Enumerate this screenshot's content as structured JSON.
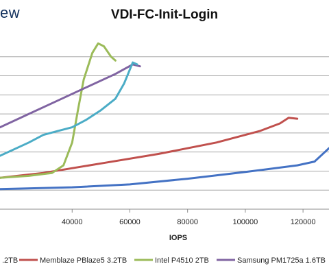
{
  "header": {
    "brand_fragment": "ew"
  },
  "colors": {
    "grid": "#a6a6a6",
    "axis": "#8c8c8c",
    "background": "#ffffff"
  },
  "chart_data": {
    "type": "line",
    "title": "VDI-FC-Init-Login",
    "xlabel": "IOPS",
    "ylabel": "",
    "xlim": [
      15000,
      129000
    ],
    "ylim": [
      0,
      9
    ],
    "grid": true,
    "legend_position": "bottom",
    "x_ticks": [
      40000,
      60000,
      80000,
      100000,
      120000
    ],
    "x_tick_labels": [
      "40000",
      "60000",
      "80000",
      "100000",
      "120000"
    ],
    "y_gridlines": [
      1,
      2,
      3,
      4,
      5,
      6,
      7,
      8
    ],
    "series": [
      {
        "name": ".2TB",
        "color": "#4472c4",
        "points": [
          [
            15000,
            1.05
          ],
          [
            40000,
            1.15
          ],
          [
            60000,
            1.3
          ],
          [
            80000,
            1.6
          ],
          [
            100000,
            1.95
          ],
          [
            118000,
            2.3
          ],
          [
            124000,
            2.5
          ],
          [
            129000,
            3.2
          ]
        ]
      },
      {
        "name": "Memblaze PBlaze5 3.2TB",
        "color": "#c0504d",
        "points": [
          [
            15000,
            1.65
          ],
          [
            30000,
            1.9
          ],
          [
            50000,
            2.4
          ],
          [
            70000,
            2.9
          ],
          [
            90000,
            3.5
          ],
          [
            105000,
            4.1
          ],
          [
            112000,
            4.5
          ],
          [
            115000,
            4.8
          ],
          [
            118000,
            4.75
          ]
        ]
      },
      {
        "name": "Intel P4510 2TB",
        "color": "#9bbb59",
        "points": [
          [
            15000,
            1.65
          ],
          [
            25000,
            1.75
          ],
          [
            33000,
            1.9
          ],
          [
            37000,
            2.3
          ],
          [
            40000,
            3.5
          ],
          [
            42000,
            5.2
          ],
          [
            44000,
            6.8
          ],
          [
            47000,
            8.2
          ],
          [
            49000,
            8.7
          ],
          [
            51000,
            8.55
          ],
          [
            53500,
            8.0
          ],
          [
            55000,
            7.8
          ]
        ]
      },
      {
        "name": "Samsung PM1725a 1.6TB",
        "color": "#8064a2",
        "points": [
          [
            15000,
            4.3
          ],
          [
            25000,
            5.0
          ],
          [
            35000,
            5.7
          ],
          [
            45000,
            6.4
          ],
          [
            55000,
            7.1
          ],
          [
            61000,
            7.6
          ],
          [
            63500,
            7.5
          ]
        ]
      },
      {
        "name": "",
        "color": "#4bacc6",
        "points": [
          [
            15000,
            2.8
          ],
          [
            25000,
            3.5
          ],
          [
            30000,
            3.9
          ],
          [
            35000,
            4.1
          ],
          [
            40000,
            4.3
          ],
          [
            45000,
            4.7
          ],
          [
            50000,
            5.2
          ],
          [
            55000,
            5.8
          ],
          [
            58000,
            6.6
          ],
          [
            61000,
            7.7
          ],
          [
            62500,
            7.6
          ]
        ]
      }
    ]
  }
}
